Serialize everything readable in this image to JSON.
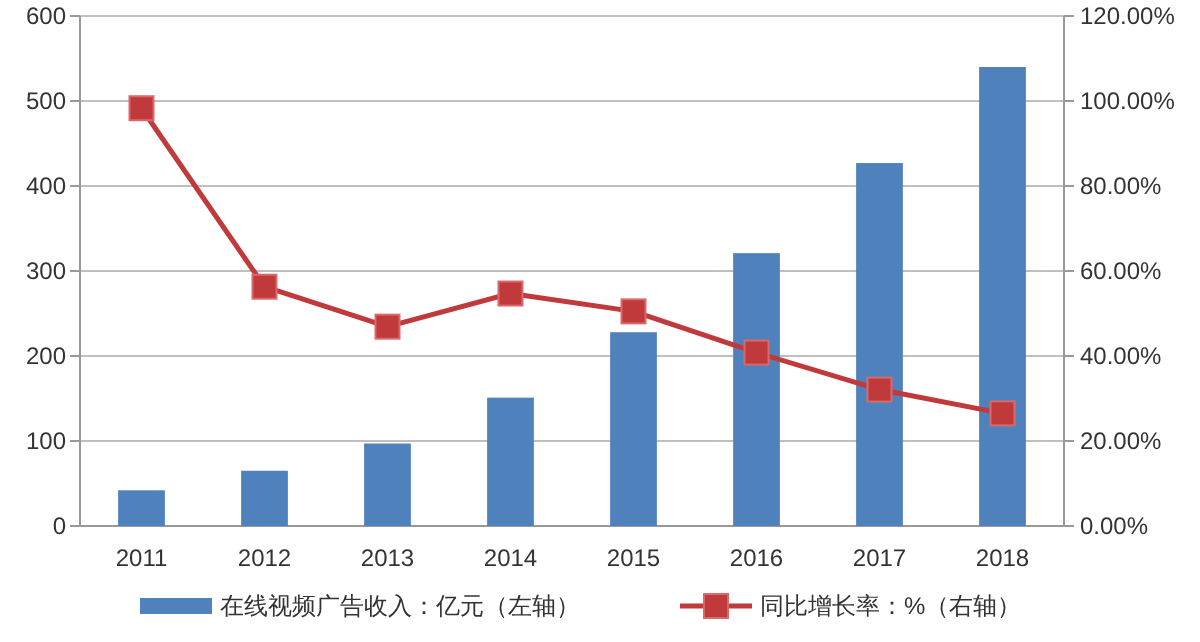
{
  "chart_data": {
    "type": "bar",
    "categories": [
      "2011",
      "2012",
      "2013",
      "2014",
      "2015",
      "2016",
      "2017",
      "2018"
    ],
    "series": [
      {
        "name": "在线视频广告收入：亿元（左轴）",
        "color": "#4f81bd",
        "values": [
          42,
          65,
          97,
          151,
          228,
          321,
          427,
          540
        ]
      },
      {
        "name": "同比增长率：%（右轴）",
        "type": "line",
        "axis": "y2",
        "color": "#c0393b",
        "marker": "square",
        "values": [
          98.3,
          56.3,
          46.9,
          54.7,
          50.5,
          40.8,
          32.1,
          26.5
        ]
      }
    ],
    "ylim": [
      0,
      600
    ],
    "yticks": [
      0,
      100,
      200,
      300,
      400,
      500,
      600
    ],
    "y2lim": [
      0,
      120
    ],
    "y2ticks": [
      {
        "value": 0,
        "label": "0.00%"
      },
      {
        "value": 20,
        "label": "20.00%"
      },
      {
        "value": 40,
        "label": "40.00%"
      },
      {
        "value": 60,
        "label": "60.00%"
      },
      {
        "value": 80,
        "label": "80.00%"
      },
      {
        "value": 100,
        "label": "100.00%"
      },
      {
        "value": 120,
        "label": "120.00%"
      }
    ],
    "grid": "y",
    "legend": "bottom"
  }
}
